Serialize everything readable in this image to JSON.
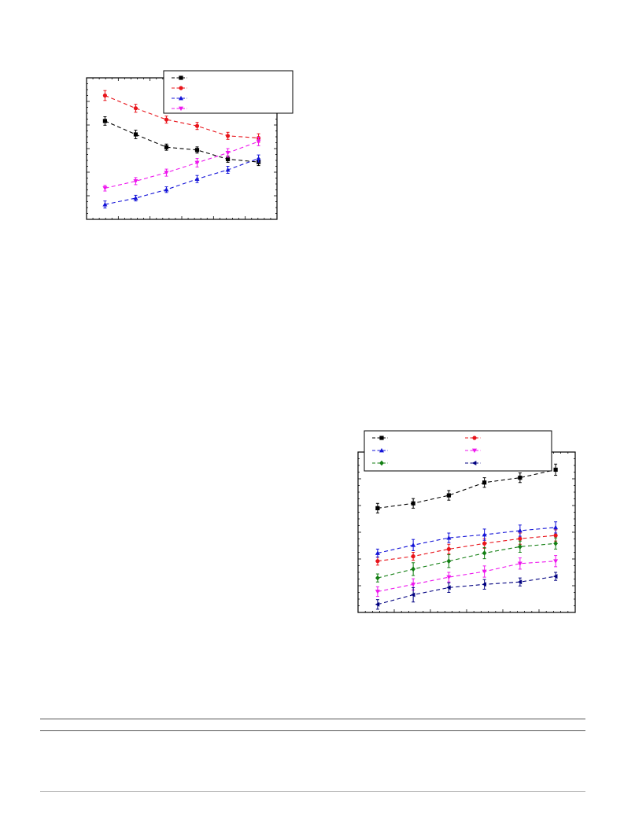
{
  "chart_data": [
    {
      "type": "line",
      "title": "",
      "xlabel": "",
      "ylabel": "",
      "x": [
        1,
        2,
        3,
        4,
        5,
        6
      ],
      "xlim": [
        0.4,
        6.6
      ],
      "ylim": [
        0,
        10
      ],
      "grid": false,
      "legend": "top-right",
      "series": [
        {
          "name": "",
          "color": "#000000",
          "marker": "square",
          "values": [
            6.95,
            6.0,
            5.1,
            4.9,
            4.25,
            4.05
          ],
          "err": [
            0.3,
            0.3,
            0.22,
            0.22,
            0.22,
            0.25
          ]
        },
        {
          "name": "",
          "color": "#e8141b",
          "marker": "circle",
          "values": [
            8.75,
            7.85,
            7.05,
            6.6,
            5.9,
            5.75
          ],
          "err": [
            0.35,
            0.28,
            0.25,
            0.25,
            0.25,
            0.3
          ]
        },
        {
          "name": "",
          "color": "#1414d8",
          "marker": "triangle-up",
          "values": [
            1.05,
            1.5,
            2.1,
            2.85,
            3.5,
            4.3
          ],
          "err": [
            0.25,
            0.2,
            0.2,
            0.25,
            0.25,
            0.25
          ]
        },
        {
          "name": "",
          "color": "#ee16ee",
          "marker": "triangle-down",
          "values": [
            2.2,
            2.7,
            3.3,
            4.0,
            4.7,
            5.5
          ],
          "err": [
            0.2,
            0.25,
            0.25,
            0.3,
            0.3,
            0.3
          ]
        }
      ]
    },
    {
      "type": "line",
      "title": "",
      "xlabel": "",
      "ylabel": "",
      "x": [
        1,
        2,
        3,
        4,
        5,
        6
      ],
      "xlim": [
        0.45,
        6.55
      ],
      "ylim": [
        0,
        10
      ],
      "grid": false,
      "legend": "top",
      "series": [
        {
          "name": "",
          "color": "#000000",
          "marker": "square",
          "values": [
            6.5,
            6.8,
            7.3,
            8.1,
            8.4,
            8.9
          ],
          "err": [
            0.3,
            0.3,
            0.3,
            0.3,
            0.3,
            0.35
          ]
        },
        {
          "name": "",
          "color": "#e8141b",
          "marker": "circle",
          "values": [
            3.2,
            3.5,
            3.95,
            4.3,
            4.6,
            4.8
          ],
          "err": [
            0.25,
            0.25,
            0.3,
            0.3,
            0.35,
            0.35
          ]
        },
        {
          "name": "",
          "color": "#1414d8",
          "marker": "triangle-up",
          "values": [
            3.7,
            4.2,
            4.65,
            4.85,
            5.1,
            5.3
          ],
          "err": [
            0.25,
            0.35,
            0.3,
            0.35,
            0.35,
            0.35
          ]
        },
        {
          "name": "",
          "color": "#ee16ee",
          "marker": "triangle-down",
          "values": [
            1.3,
            1.75,
            2.2,
            2.55,
            3.05,
            3.2
          ],
          "err": [
            0.3,
            0.35,
            0.3,
            0.35,
            0.35,
            0.35
          ]
        },
        {
          "name": "",
          "color": "#137f13",
          "marker": "diamond",
          "values": [
            2.15,
            2.7,
            3.2,
            3.7,
            4.1,
            4.3
          ],
          "err": [
            0.25,
            0.4,
            0.4,
            0.35,
            0.35,
            0.35
          ]
        },
        {
          "name": "",
          "color": "#000080",
          "marker": "triangle-left",
          "values": [
            0.5,
            1.1,
            1.55,
            1.75,
            1.9,
            2.25
          ],
          "err": [
            0.3,
            0.45,
            0.3,
            0.3,
            0.25,
            0.25
          ]
        }
      ]
    }
  ]
}
